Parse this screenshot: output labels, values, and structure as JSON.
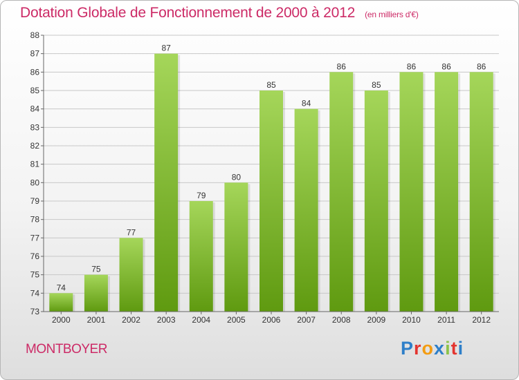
{
  "title": "Dotation Globale de Fonctionnement de 2000 à 2012",
  "unit_note": "(en milliers d'€)",
  "commune": "MONTBOYER",
  "logo": {
    "text": "Proxiti",
    "letter_colors": [
      "#2e7fc9",
      "#e3342f",
      "#f39c12",
      "#2e7fc9",
      "#8bc34a",
      "#e3342f",
      "#2e7fc9"
    ]
  },
  "colors": {
    "title": "#cc2a66",
    "bar_light": "#a5d65a",
    "bar_dark": "#5f9a10",
    "grid": "#c8c8c8"
  },
  "chart_data": {
    "type": "bar",
    "title": "Dotation Globale de Fonctionnement de 2000 à 2012",
    "subtitle": "(en milliers d'€)",
    "categories": [
      "2000",
      "2001",
      "2002",
      "2003",
      "2004",
      "2005",
      "2006",
      "2007",
      "2008",
      "2009",
      "2010",
      "2011",
      "2012"
    ],
    "values": [
      74,
      75,
      77,
      87,
      79,
      80,
      85,
      84,
      86,
      85,
      86,
      86,
      86
    ],
    "ylim": [
      73,
      88
    ],
    "yticks": [
      73,
      74,
      75,
      76,
      77,
      78,
      79,
      80,
      81,
      82,
      83,
      84,
      85,
      86,
      87,
      88
    ],
    "xlabel": "",
    "ylabel": "",
    "grid": true,
    "data_labels": true
  }
}
